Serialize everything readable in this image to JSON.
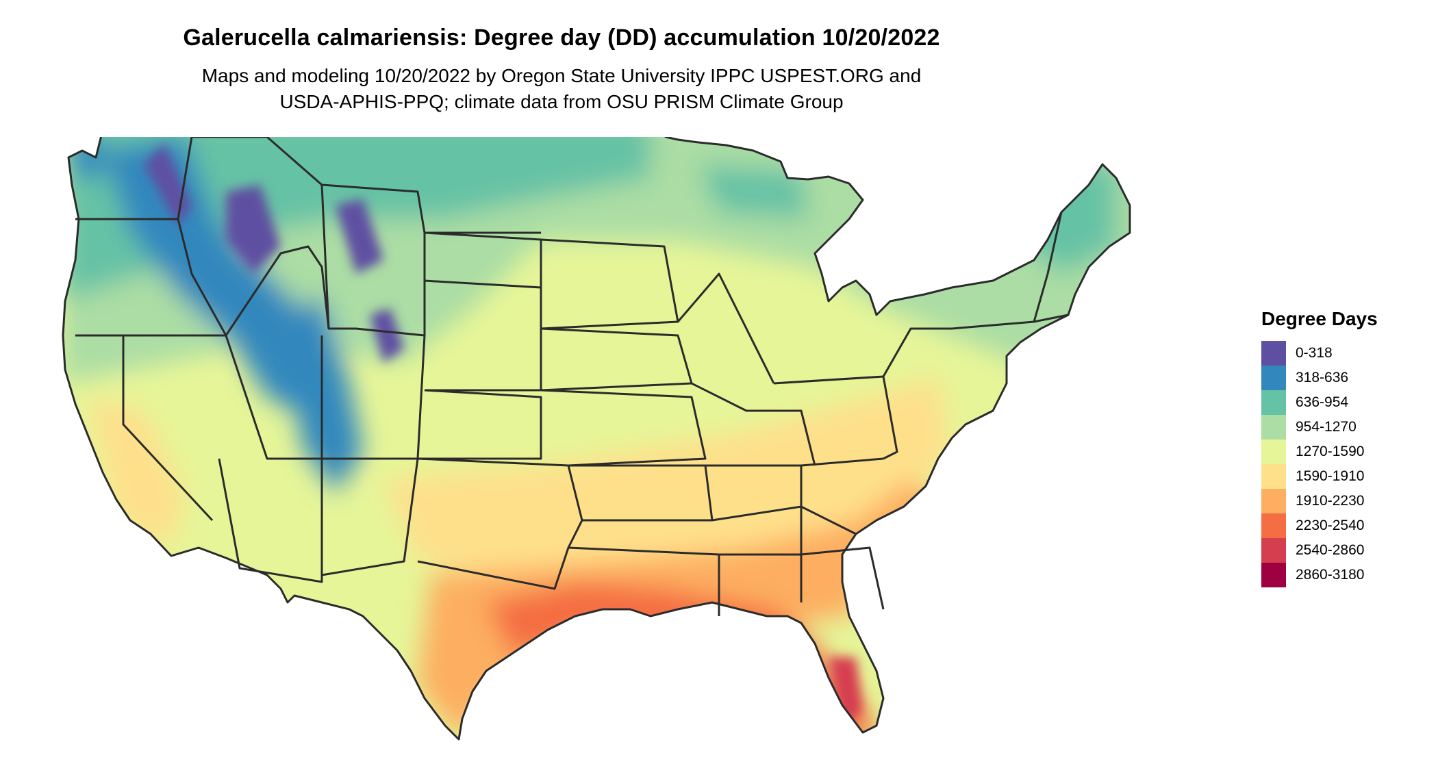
{
  "title": "Galerucella calmariensis: Degree day (DD) accumulation 10/20/2022",
  "subtitle_line1": "Maps and modeling 10/20/2022 by Oregon State University IPPC USPEST.ORG and",
  "subtitle_line2": "USDA-APHIS-PPQ; climate data from OSU PRISM Climate Group",
  "legend": {
    "title": "Degree Days",
    "items": [
      {
        "label": "0-318",
        "color": "#5e4fa2"
      },
      {
        "label": "318-636",
        "color": "#3288bd"
      },
      {
        "label": "636-954",
        "color": "#66c2a5"
      },
      {
        "label": "954-1270",
        "color": "#abdda4"
      },
      {
        "label": "1270-1590",
        "color": "#e6f598"
      },
      {
        "label": "1590-1910",
        "color": "#fee08b"
      },
      {
        "label": "1910-2230",
        "color": "#fdae61"
      },
      {
        "label": "2230-2540",
        "color": "#f46d43"
      },
      {
        "label": "2540-2860",
        "color": "#d53e4f"
      },
      {
        "label": "2860-3180",
        "color": "#9e0142"
      }
    ]
  },
  "map": {
    "region": "conterminous-united-states",
    "border_color": "#2b2b2b"
  }
}
